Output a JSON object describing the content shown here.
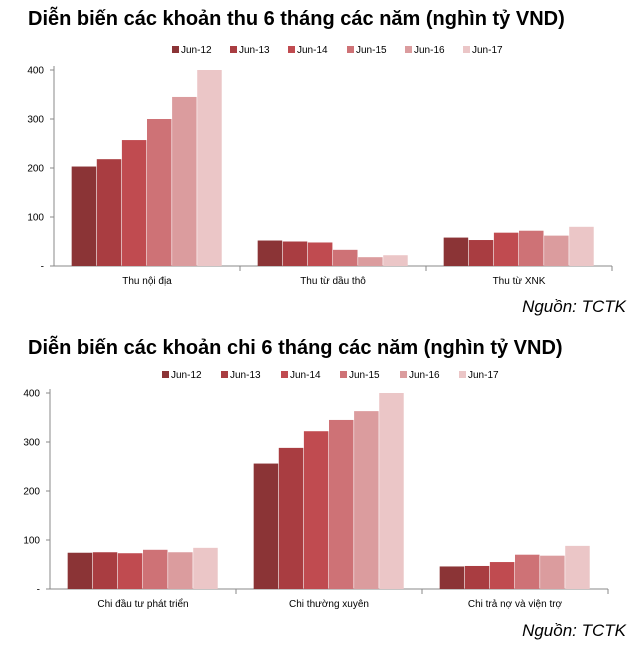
{
  "chart_data": [
    {
      "type": "bar",
      "title": "Diễn biến các khoản thu 6 tháng các năm (nghìn tỷ VND)",
      "source": "Nguồn: TCTK",
      "categories": [
        "Thu nội địa",
        "Thu từ dầu thô",
        "Thu từ XNK"
      ],
      "series": [
        {
          "name": "Jun-12",
          "values": [
            203,
            52,
            58
          ]
        },
        {
          "name": "Jun-13",
          "values": [
            218,
            50,
            53
          ]
        },
        {
          "name": "Jun-14",
          "values": [
            257,
            48,
            68
          ]
        },
        {
          "name": "Jun-15",
          "values": [
            300,
            33,
            72
          ]
        },
        {
          "name": "Jun-16",
          "values": [
            345,
            18,
            62
          ]
        },
        {
          "name": "Jun-17",
          "values": [
            400,
            22,
            80
          ]
        }
      ],
      "ylim": [
        0,
        400
      ],
      "yticks": [
        100,
        200,
        300,
        400
      ],
      "xlabel": "",
      "ylabel": "",
      "legend": "top"
    },
    {
      "type": "bar",
      "title": "Diễn biến các khoản chi 6 tháng các năm (nghìn tỷ VND)",
      "source": "Nguồn: TCTK",
      "categories": [
        "Chi đầu tư phát triển",
        "Chi thường xuyên",
        "Chi trả nợ và viện trợ"
      ],
      "series": [
        {
          "name": "Jun-12",
          "values": [
            74,
            256,
            46
          ]
        },
        {
          "name": "Jun-13",
          "values": [
            75,
            288,
            47
          ]
        },
        {
          "name": "Jun-14",
          "values": [
            73,
            322,
            55
          ]
        },
        {
          "name": "Jun-15",
          "values": [
            80,
            345,
            70
          ]
        },
        {
          "name": "Jun-16",
          "values": [
            75,
            363,
            68
          ]
        },
        {
          "name": "Jun-17",
          "values": [
            84,
            400,
            88
          ]
        }
      ],
      "ylim": [
        0,
        400
      ],
      "yticks": [
        100,
        200,
        300,
        400
      ],
      "xlabel": "",
      "ylabel": "",
      "legend": "top"
    }
  ],
  "colors": [
    "#8B3436",
    "#A93D41",
    "#C04B50",
    "#CE7276",
    "#DB9C9E",
    "#EBC6C7"
  ]
}
